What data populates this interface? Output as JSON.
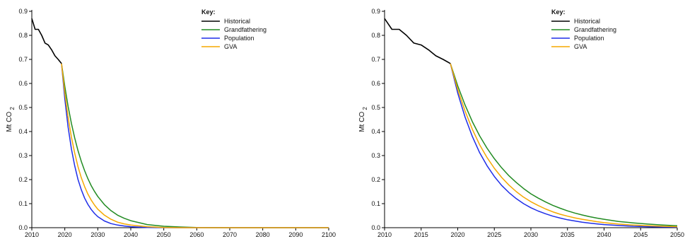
{
  "chart_data": [
    {
      "type": "line",
      "title": "",
      "xlabel": "",
      "ylabel": "Mt CO",
      "ylabel_sub": "2",
      "xlim": [
        2010,
        2100
      ],
      "ylim": [
        0,
        0.9
      ],
      "xticks": [
        2010,
        2020,
        2030,
        2040,
        2050,
        2060,
        2070,
        2080,
        2090,
        2100
      ],
      "yticks": [
        0.0,
        0.1,
        0.2,
        0.3,
        0.4,
        0.5,
        0.6,
        0.7,
        0.8,
        0.9
      ],
      "ytick_labels": [
        "0.0",
        "0.1",
        "0.2",
        "0.3",
        "0.4",
        "0.5",
        "0.6",
        "0.7",
        "0.8",
        "0.9"
      ],
      "legend_title": "Key:",
      "legend_position": "top-center",
      "grid": false,
      "series": [
        {
          "name": "Historical",
          "color": "#000000",
          "x": [
            2010,
            2011,
            2012,
            2013,
            2014,
            2015,
            2016,
            2017,
            2018,
            2019
          ],
          "y": [
            0.87,
            0.825,
            0.825,
            0.8,
            0.768,
            0.76,
            0.74,
            0.715,
            0.7,
            0.683
          ]
        },
        {
          "name": "Grandfathering",
          "color": "#228b22",
          "x": [
            2019,
            2020,
            2021,
            2022,
            2023,
            2024,
            2025,
            2026,
            2027,
            2028,
            2029,
            2030,
            2032,
            2034,
            2036,
            2038,
            2040,
            2045,
            2050,
            2055,
            2060,
            2070,
            2080,
            2090,
            2100
          ],
          "y": [
            0.683,
            0.587,
            0.505,
            0.434,
            0.373,
            0.321,
            0.276,
            0.237,
            0.204,
            0.175,
            0.151,
            0.13,
            0.096,
            0.071,
            0.052,
            0.039,
            0.029,
            0.013,
            0.006,
            0.003,
            0.001,
            0.0,
            0.0,
            0.0,
            0.0
          ]
        },
        {
          "name": "Population",
          "color": "#1f2ee8",
          "x": [
            2019,
            2020,
            2021,
            2022,
            2023,
            2024,
            2025,
            2026,
            2027,
            2028,
            2029,
            2030,
            2032,
            2034,
            2036,
            2038,
            2040,
            2045,
            2050,
            2055,
            2060,
            2070,
            2080,
            2090,
            2100
          ],
          "y": [
            0.683,
            0.535,
            0.419,
            0.328,
            0.257,
            0.201,
            0.158,
            0.123,
            0.097,
            0.076,
            0.059,
            0.046,
            0.028,
            0.017,
            0.011,
            0.007,
            0.004,
            0.001,
            0.0,
            0.0,
            0.0,
            0.0,
            0.0,
            0.0,
            0.0
          ]
        },
        {
          "name": "GVA",
          "color": "#f5a800",
          "x": [
            2019,
            2020,
            2021,
            2022,
            2023,
            2024,
            2025,
            2026,
            2027,
            2028,
            2029,
            2030,
            2032,
            2034,
            2036,
            2038,
            2040,
            2045,
            2050,
            2055,
            2060,
            2070,
            2080,
            2090,
            2100
          ],
          "y": [
            0.683,
            0.56,
            0.46,
            0.377,
            0.31,
            0.254,
            0.208,
            0.171,
            0.14,
            0.115,
            0.094,
            0.077,
            0.052,
            0.035,
            0.023,
            0.016,
            0.011,
            0.004,
            0.001,
            0.0,
            0.0,
            0.0,
            0.0,
            0.0,
            0.0
          ]
        }
      ]
    },
    {
      "type": "line",
      "title": "",
      "xlabel": "",
      "ylabel": "Mt CO",
      "ylabel_sub": "2",
      "xlim": [
        2010,
        2050
      ],
      "ylim": [
        0,
        0.9
      ],
      "xticks": [
        2010,
        2015,
        2020,
        2025,
        2030,
        2035,
        2040,
        2045,
        2050
      ],
      "yticks": [
        0.0,
        0.1,
        0.2,
        0.3,
        0.4,
        0.5,
        0.6,
        0.7,
        0.8,
        0.9
      ],
      "ytick_labels": [
        "0.0",
        "0.1",
        "0.2",
        "0.3",
        "0.4",
        "0.5",
        "0.6",
        "0.7",
        "0.8",
        "0.9"
      ],
      "legend_title": "Key:",
      "legend_position": "top-center",
      "grid": false,
      "series": [
        {
          "name": "Historical",
          "color": "#000000",
          "x": [
            2010,
            2011,
            2012,
            2013,
            2014,
            2015,
            2016,
            2017,
            2018,
            2019
          ],
          "y": [
            0.87,
            0.825,
            0.825,
            0.8,
            0.768,
            0.76,
            0.74,
            0.715,
            0.7,
            0.683
          ]
        },
        {
          "name": "Grandfathering",
          "color": "#228b22",
          "x": [
            2019,
            2020,
            2021,
            2022,
            2023,
            2024,
            2025,
            2026,
            2027,
            2028,
            2029,
            2030,
            2031,
            2032,
            2033,
            2034,
            2035,
            2036,
            2037,
            2038,
            2039,
            2040,
            2042,
            2044,
            2046,
            2048,
            2050
          ],
          "y": [
            0.683,
            0.59,
            0.51,
            0.441,
            0.382,
            0.331,
            0.287,
            0.249,
            0.216,
            0.188,
            0.163,
            0.141,
            0.123,
            0.107,
            0.093,
            0.081,
            0.07,
            0.061,
            0.053,
            0.046,
            0.04,
            0.035,
            0.026,
            0.02,
            0.015,
            0.011,
            0.008
          ]
        },
        {
          "name": "Population",
          "color": "#1f2ee8",
          "x": [
            2019,
            2020,
            2021,
            2022,
            2023,
            2024,
            2025,
            2026,
            2027,
            2028,
            2029,
            2030,
            2031,
            2032,
            2033,
            2034,
            2035,
            2036,
            2037,
            2038,
            2039,
            2040,
            2042,
            2044,
            2046,
            2048,
            2050
          ],
          "y": [
            0.683,
            0.56,
            0.46,
            0.379,
            0.312,
            0.258,
            0.213,
            0.176,
            0.146,
            0.121,
            0.1,
            0.083,
            0.069,
            0.058,
            0.048,
            0.04,
            0.033,
            0.028,
            0.023,
            0.019,
            0.016,
            0.013,
            0.009,
            0.006,
            0.004,
            0.003,
            0.002
          ]
        },
        {
          "name": "GVA",
          "color": "#f5a800",
          "x": [
            2019,
            2020,
            2021,
            2022,
            2023,
            2024,
            2025,
            2026,
            2027,
            2028,
            2029,
            2030,
            2031,
            2032,
            2033,
            2034,
            2035,
            2036,
            2037,
            2038,
            2039,
            2040,
            2042,
            2044,
            2046,
            2048,
            2050
          ],
          "y": [
            0.683,
            0.575,
            0.485,
            0.409,
            0.345,
            0.292,
            0.247,
            0.209,
            0.177,
            0.15,
            0.127,
            0.108,
            0.092,
            0.078,
            0.066,
            0.056,
            0.048,
            0.041,
            0.035,
            0.03,
            0.025,
            0.021,
            0.015,
            0.011,
            0.008,
            0.006,
            0.004
          ]
        }
      ]
    }
  ]
}
